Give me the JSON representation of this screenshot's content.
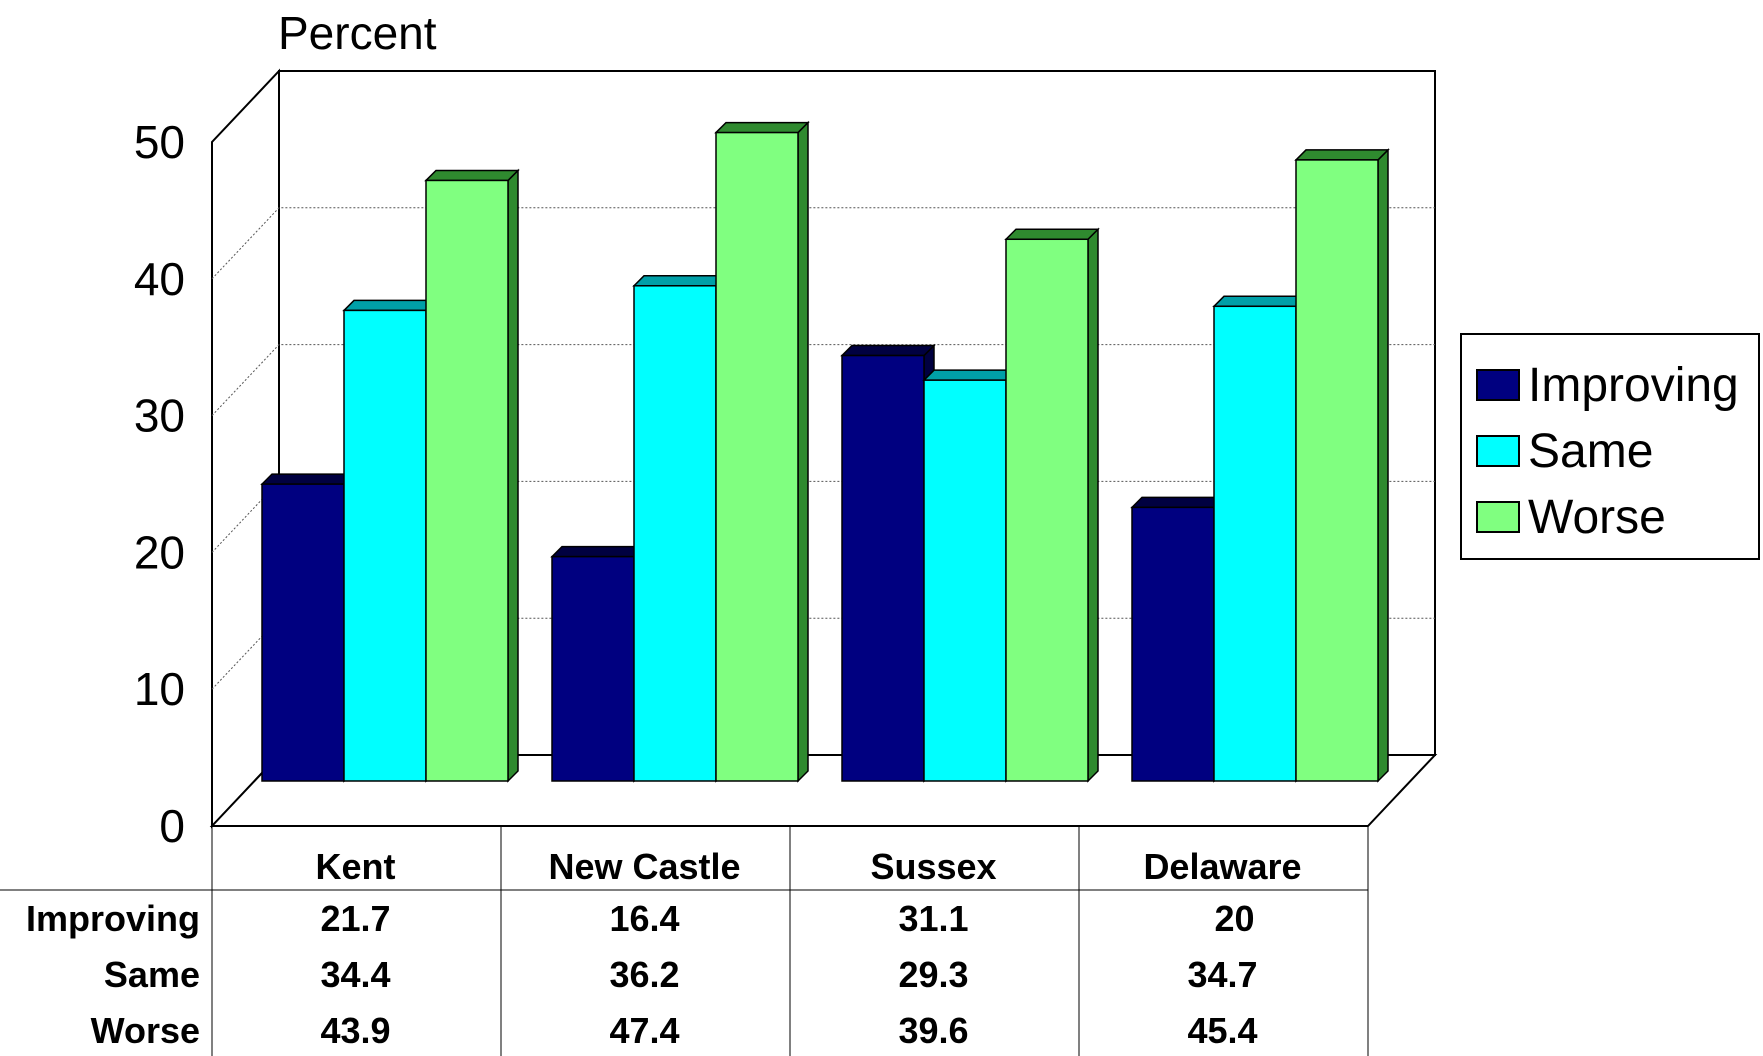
{
  "chart_data": {
    "type": "bar",
    "ylabel": "Percent",
    "ylim": [
      0,
      50
    ],
    "yticks": [
      "0",
      "10",
      "20",
      "30",
      "40",
      "50"
    ],
    "categories": [
      "Kent",
      "New Castle",
      "Sussex",
      "Delaware"
    ],
    "series": [
      {
        "name": "Improving",
        "values": [
          21.7,
          16.4,
          31.1,
          20
        ],
        "labels": [
          "21.7",
          "16.4",
          "31.1",
          "20"
        ],
        "color": "#000080",
        "side": "#000040"
      },
      {
        "name": "Same",
        "values": [
          34.4,
          36.2,
          29.3,
          34.7
        ],
        "labels": [
          "34.4",
          "36.2",
          "29.3",
          "34.7"
        ],
        "color": "#00ffff",
        "side": "#00a0a8"
      },
      {
        "name": "Worse",
        "values": [
          43.9,
          47.4,
          39.6,
          45.4
        ],
        "labels": [
          "43.9",
          "47.4",
          "39.6",
          "45.4"
        ],
        "color": "#80ff80",
        "side": "#2f8a2f"
      }
    ],
    "grid": true,
    "legend": "right",
    "three_d": true,
    "data_table": true
  }
}
